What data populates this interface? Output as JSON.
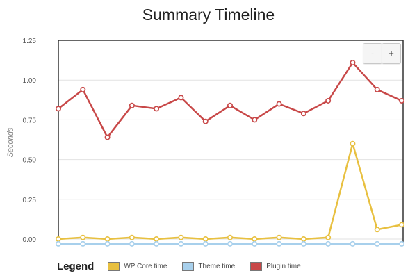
{
  "title": "Summary Timeline",
  "zoom": {
    "minus_label": "-",
    "plus_label": "+"
  },
  "legend": {
    "title": "Legend"
  },
  "chart_data": {
    "type": "line",
    "title": "Summary Timeline",
    "xlabel": "",
    "ylabel": "Seconds",
    "ylim": [
      0,
      1.25
    ],
    "yticks": [
      "0.00",
      "0.25",
      "0.50",
      "0.75",
      "1.00",
      "1.25"
    ],
    "grid": true,
    "legend_position": "bottom",
    "x": [
      1,
      2,
      3,
      4,
      5,
      6,
      7,
      8,
      9,
      10,
      11,
      12,
      13,
      14,
      15
    ],
    "series": [
      {
        "name": "WP Core time",
        "color": "#e8c040",
        "values": [
          0.0,
          0.01,
          0.0,
          0.01,
          0.0,
          0.01,
          0.0,
          0.01,
          0.0,
          0.01,
          0.0,
          0.01,
          0.6,
          0.06,
          0.09
        ]
      },
      {
        "name": "Theme time",
        "color": "#a8d0ec",
        "values": [
          -0.03,
          -0.03,
          -0.03,
          -0.03,
          -0.03,
          -0.03,
          -0.03,
          -0.03,
          -0.03,
          -0.03,
          -0.03,
          -0.03,
          -0.03,
          -0.03,
          -0.03
        ]
      },
      {
        "name": "Plugin time",
        "color": "#c84848",
        "values": [
          0.82,
          0.94,
          0.64,
          0.84,
          0.82,
          0.89,
          0.74,
          0.84,
          0.75,
          0.85,
          0.79,
          0.87,
          1.11,
          0.94,
          0.87
        ]
      }
    ]
  }
}
